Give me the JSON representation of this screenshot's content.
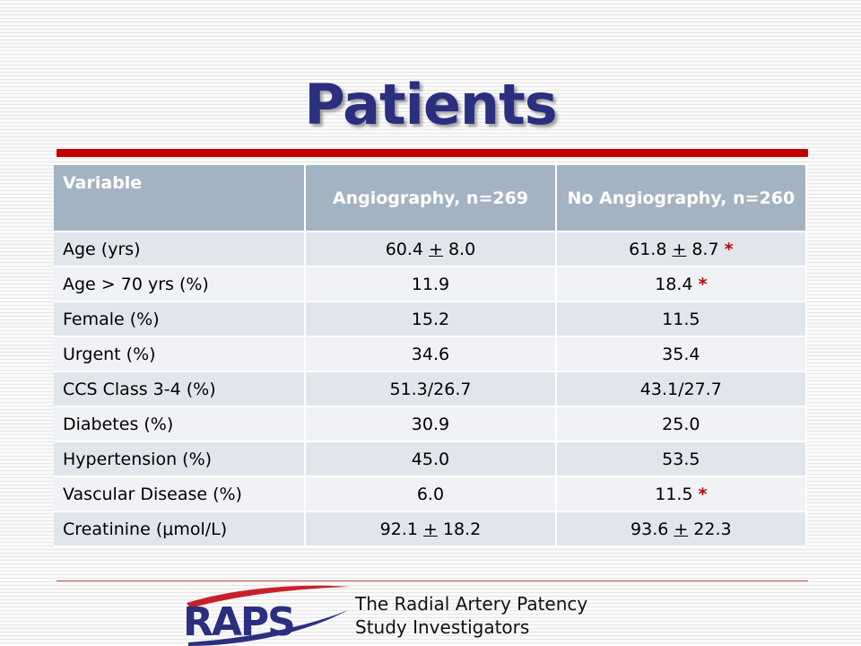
{
  "slide": {
    "title": "Patients"
  },
  "table": {
    "headers": [
      "Variable",
      "Angiography, n=269",
      "No Angiography, n=260"
    ],
    "rows": [
      {
        "variable": "Age (yrs)",
        "angio_a": "60.4",
        "angio_pm": "+",
        "angio_b": "8.0",
        "noangio_a": "61.8",
        "noangio_pm": "+",
        "noangio_b": "8.7",
        "star": "*"
      },
      {
        "variable": "Age > 70 yrs (%)",
        "angio": "11.9",
        "noangio": "18.4",
        "star": "*"
      },
      {
        "variable": "Female (%)",
        "angio": "15.2",
        "noangio": "11.5"
      },
      {
        "variable": "Urgent (%)",
        "angio": "34.6",
        "noangio": "35.4"
      },
      {
        "variable": "CCS Class 3-4 (%)",
        "angio": "51.3/26.7",
        "noangio": "43.1/27.7"
      },
      {
        "variable": "Diabetes (%)",
        "angio": "30.9",
        "noangio": "25.0"
      },
      {
        "variable": "Hypertension (%)",
        "angio": "45.0",
        "noangio": "53.5"
      },
      {
        "variable": "Vascular Disease (%)",
        "angio": "6.0",
        "noangio": "11.5",
        "star": "*"
      },
      {
        "variable": "Creatinine (μmol/L)",
        "angio_a": "92.1",
        "angio_pm": "+",
        "angio_b": "18.2",
        "noangio_a": "93.6",
        "noangio_pm": "+",
        "noangio_b": "22.3"
      }
    ]
  },
  "footer": {
    "logo_text": "RAPS",
    "line1": "The Radial Artery Patency",
    "line2": "Study Investigators"
  },
  "colors": {
    "title": "#2a2f7f",
    "accent_red": "#c00000",
    "header_bg": "#a4b3c2",
    "logo_navy": "#2a2f7f"
  }
}
